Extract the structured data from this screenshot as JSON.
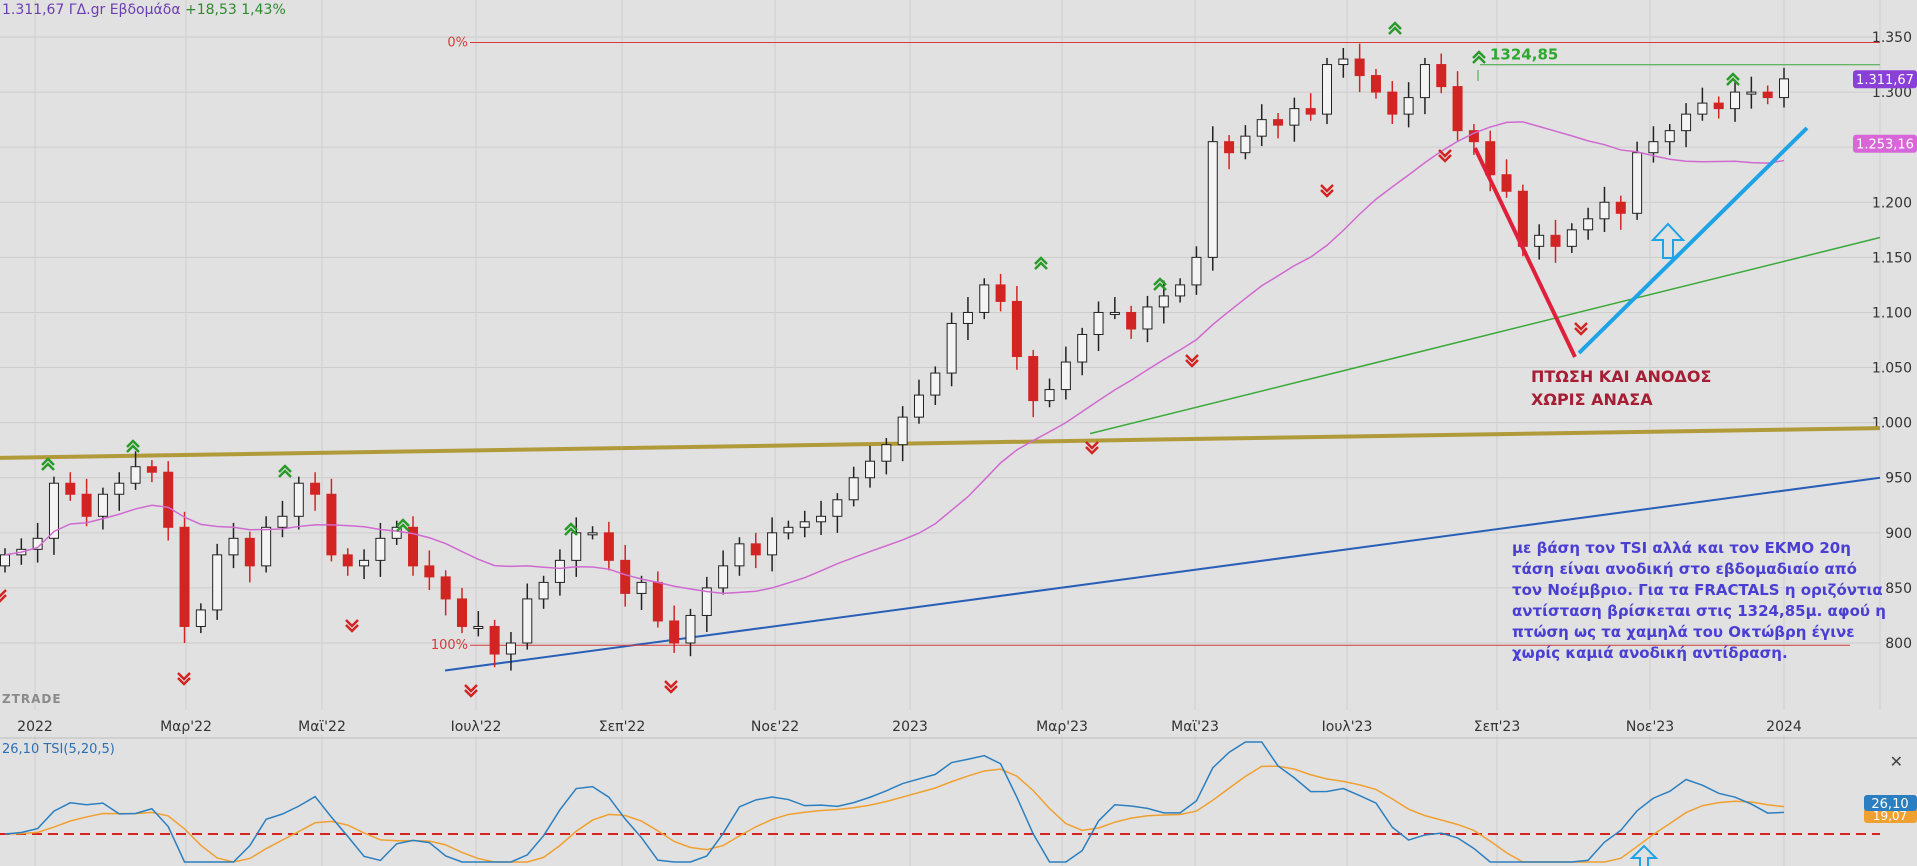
{
  "header": {
    "text": "1.311,67 ΓΔ.gr Εβδομάδα",
    "change": "+18,53 1,43%"
  },
  "watermark": "ZTRADE",
  "tsi_header": "26,10 TSI(5,20,5)",
  "close_label": "✕",
  "chart_data": {
    "type": "candlestick",
    "timeframe": "weekly",
    "x_labels": [
      "2022",
      "Μαρ'22",
      "Μαϊ'22",
      "Ιουλ'22",
      "Σεπ'22",
      "Νοε'22",
      "2023",
      "Μαρ'23",
      "Μαϊ'23",
      "Ιουλ'23",
      "Σεπ'23",
      "Νοε'23",
      "2024"
    ],
    "y_ticks": [
      "1.350",
      "1.300",
      "1.250",
      "1.200",
      "1.150",
      "1.100",
      "1.050",
      "1.000",
      "950",
      "900",
      "850",
      "800"
    ],
    "ylim": [
      770,
      1360
    ],
    "price_labels": [
      {
        "text": "1.311,67",
        "color": "#8a3fd6"
      },
      {
        "text": "1.253,16",
        "color": "#d866d8"
      }
    ],
    "fib_labels": [
      "0%",
      "100%"
    ],
    "resistance_label": "1324,85",
    "annotation": [
      "ΠΤΩΣΗ ΚΑΙ ΑΝΟΔΟΣ",
      "ΧΩΡΙΣ ΑΝΑΣΑ"
    ],
    "note": "με βάση τον TSI αλλά και τον ΕΚΜΟ 20η τάση είναι ανοδική στο εβδομαδιαίο από τον Νοέμβριο. Για τα FRACTALS η οριζόντια αντίσταση βρίσκεται στις 1324,85μ. αφού η πτώση ως τα χαμηλά του Οκτώβρη έγινε χωρίς καμιά ανοδική αντίδραση.",
    "closes": [
      880,
      885,
      895,
      945,
      935,
      915,
      935,
      945,
      960,
      955,
      905,
      815,
      830,
      880,
      895,
      870,
      905,
      915,
      945,
      935,
      880,
      870,
      875,
      895,
      905,
      870,
      860,
      840,
      815,
      815,
      790,
      800,
      840,
      855,
      875,
      900,
      900,
      875,
      845,
      855,
      820,
      800,
      825,
      850,
      870,
      890,
      880,
      900,
      905,
      910,
      915,
      930,
      950,
      965,
      980,
      1005,
      1025,
      1045,
      1090,
      1100,
      1125,
      1110,
      1060,
      1020,
      1030,
      1055,
      1080,
      1100,
      1100,
      1085,
      1105,
      1115,
      1125,
      1150,
      1255,
      1245,
      1260,
      1275,
      1270,
      1285,
      1280,
      1325,
      1330,
      1315,
      1300,
      1280,
      1295,
      1325,
      1305,
      1265,
      1255,
      1225,
      1210,
      1160,
      1170,
      1160,
      1175,
      1185,
      1200,
      1190,
      1245,
      1255,
      1265,
      1280,
      1290,
      1285,
      1300,
      1300,
      1295,
      1312
    ],
    "tsi": {
      "value_label": "26,10",
      "signal_label": "19,07",
      "zero_line": 0
    }
  }
}
